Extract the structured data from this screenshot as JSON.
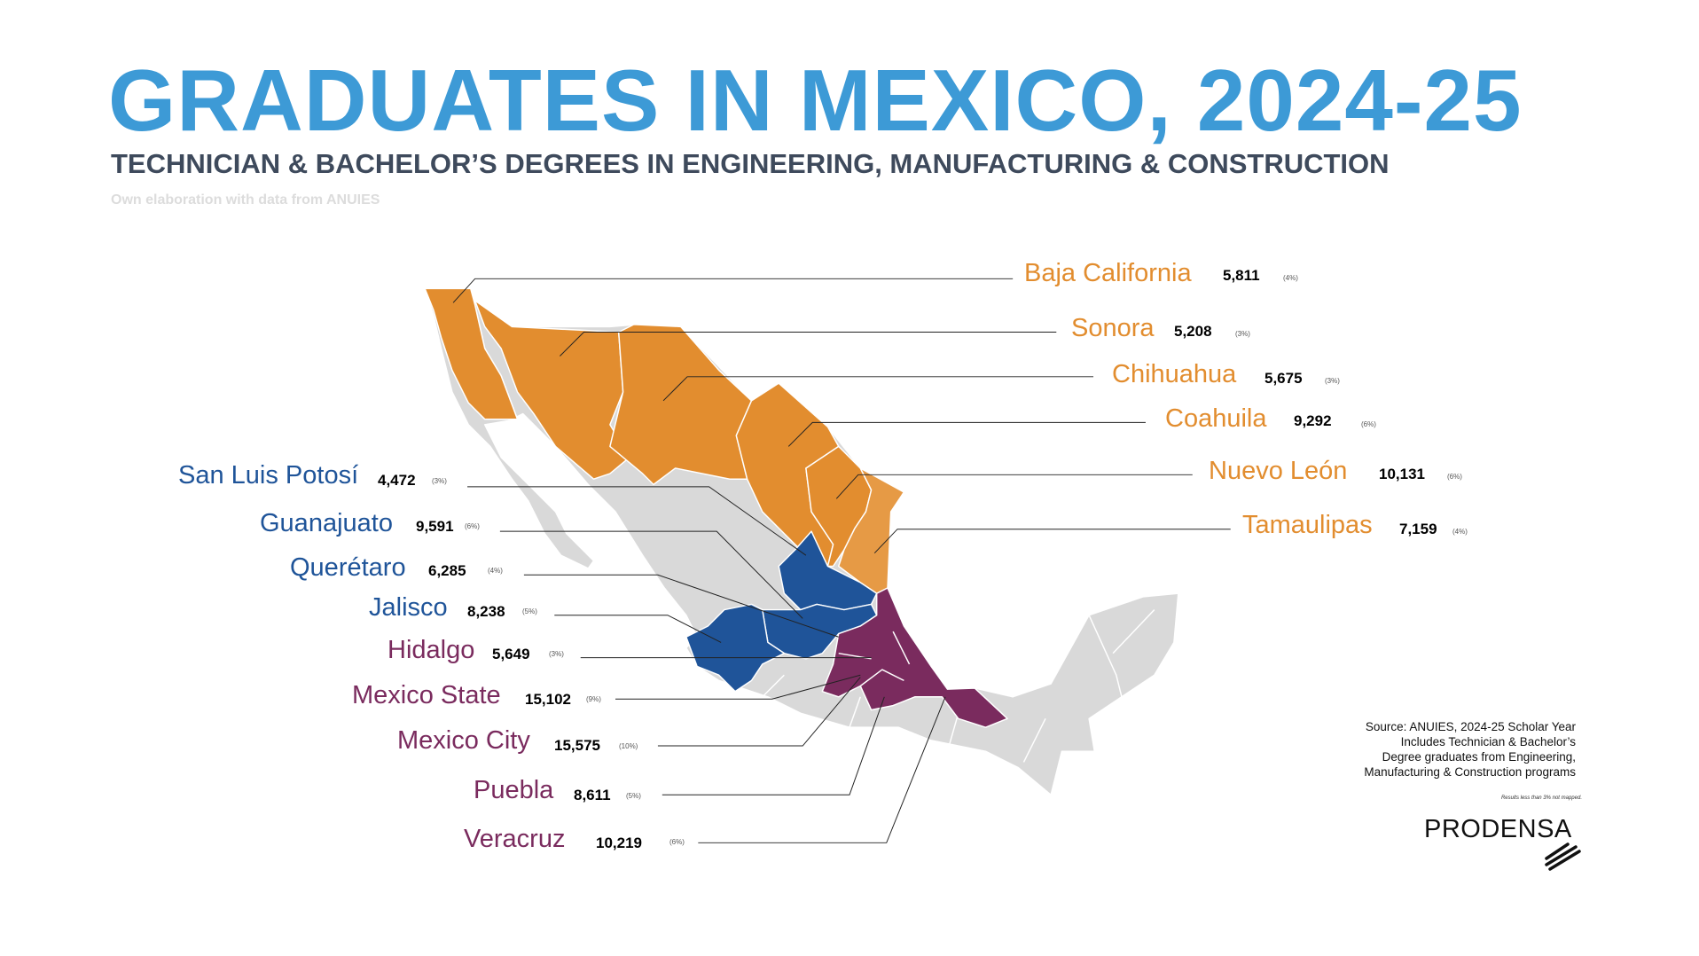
{
  "title": "GRADUATES IN MEXICO, 2024-25",
  "subtitle": "TECHNICIAN & BACHELOR’S DEGREES IN ENGINEERING, MANUFACTURING & CONSTRUCTION",
  "credit": "Own elaboration with data from ANUIES",
  "colors": {
    "title": "#3d9ad6",
    "north": "#e28d2f",
    "center": "#1f5499",
    "south": "#7a2b5e",
    "unmapped": "#d9d9d9"
  },
  "states": [
    {
      "name": "Baja California",
      "value": "5,811",
      "share": "(4%)"
    },
    {
      "name": "Sonora",
      "value": "5,208",
      "share": "(3%)"
    },
    {
      "name": "Chihuahua",
      "value": "5,675",
      "share": "(3%)"
    },
    {
      "name": "Coahuila",
      "value": "9,292",
      "share": "(6%)"
    },
    {
      "name": "Nuevo León",
      "value": "10,131",
      "share": "(6%)"
    },
    {
      "name": "Tamaulipas",
      "value": "7,159",
      "share": "(4%)"
    },
    {
      "name": "San Luis Potosí",
      "value": "4,472",
      "share": "(3%)"
    },
    {
      "name": "Guanajuato",
      "value": "9,591",
      "share": "(6%)"
    },
    {
      "name": "Querétaro",
      "value": "6,285",
      "share": "(4%)"
    },
    {
      "name": "Jalisco",
      "value": "8,238",
      "share": "(5%)"
    },
    {
      "name": "Hidalgo",
      "value": "5,649",
      "share": "(3%)"
    },
    {
      "name": "Mexico State",
      "value": "15,102",
      "share": "(9%)"
    },
    {
      "name": "Mexico City",
      "value": "15,575",
      "share": "(10%)"
    },
    {
      "name": "Puebla",
      "value": "8,611",
      "share": "(5%)"
    },
    {
      "name": "Veracruz",
      "value": "10,219",
      "share": "(6%)"
    }
  ],
  "source": {
    "line1": "Source: ANUIES, 2024-25 Scholar Year",
    "line2": "Includes Technician & Bachelor’s",
    "line3": "Degree graduates from Engineering,",
    "line4": "Manufacturing & Construction programs"
  },
  "note": "Results less than 3% not mapped.",
  "logo": "PRODENSA"
}
